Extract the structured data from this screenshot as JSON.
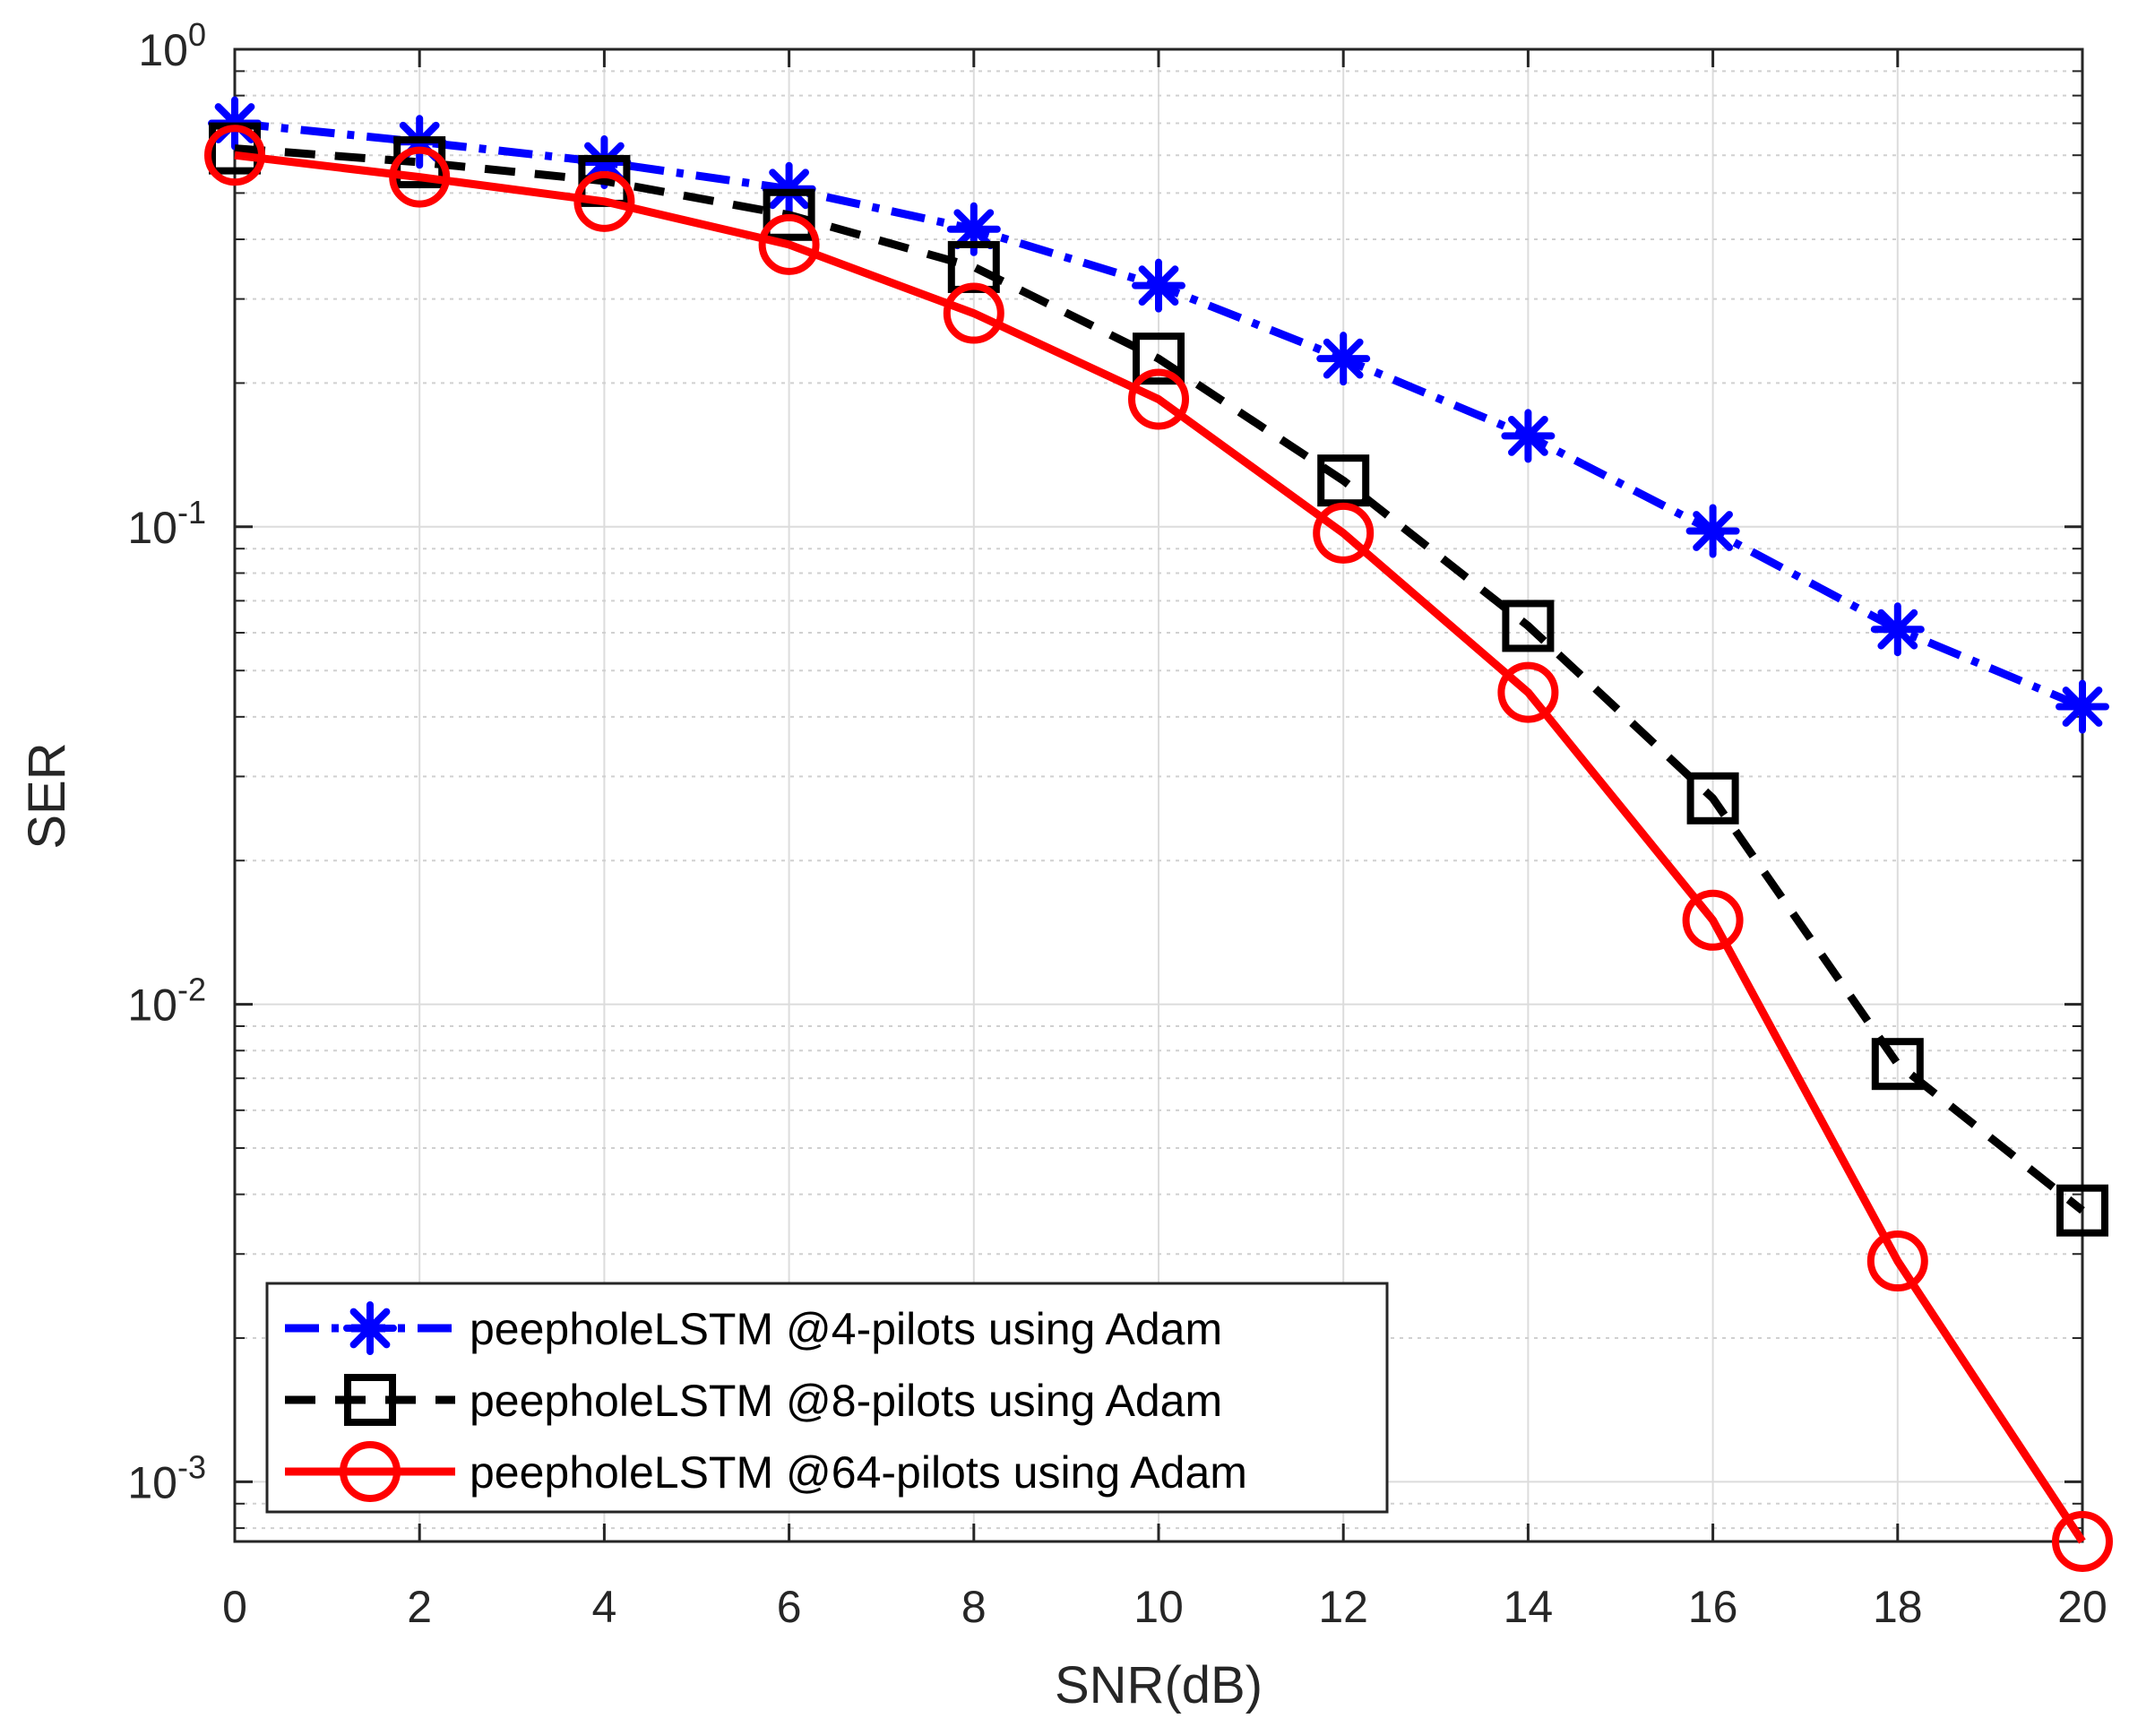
{
  "chart_data": {
    "type": "line",
    "xlabel": "SNR(dB)",
    "ylabel": "SER",
    "x": [
      0,
      2,
      4,
      6,
      8,
      10,
      12,
      14,
      16,
      18,
      20
    ],
    "xlim": [
      0,
      20
    ],
    "ylim": [
      0.00075,
      1
    ],
    "yscale": "log",
    "grid": "on (major and minor)",
    "legend_location": "bottom-left",
    "xticks": [
      "0",
      "2",
      "4",
      "6",
      "8",
      "10",
      "12",
      "14",
      "16",
      "18",
      "20"
    ],
    "yticks": [
      {
        "value": 1,
        "base": "10",
        "exp": "0"
      },
      {
        "value": 0.1,
        "base": "10",
        "exp": "-1"
      },
      {
        "value": 0.01,
        "base": "10",
        "exp": "-2"
      },
      {
        "value": 0.001,
        "base": "10",
        "exp": "-3"
      }
    ],
    "series": [
      {
        "name": "peepholeLSTM @4-pilots using Adam",
        "color": "#0000ff",
        "line_style": "dash-dot",
        "marker": "asterisk",
        "values": [
          0.7,
          0.64,
          0.58,
          0.51,
          0.42,
          0.32,
          0.225,
          0.155,
          0.098,
          0.061,
          0.042
        ]
      },
      {
        "name": "peepholeLSTM @8-pilots using Adam",
        "color": "#000000",
        "line_style": "dashed",
        "marker": "square",
        "values": [
          0.62,
          0.58,
          0.53,
          0.45,
          0.35,
          0.225,
          0.125,
          0.062,
          0.027,
          0.0075,
          0.0037
        ]
      },
      {
        "name": "peepholeLSTM @64-pilots using Adam",
        "color": "#ff0000",
        "line_style": "solid",
        "marker": "circle",
        "values": [
          0.6,
          0.54,
          0.48,
          0.39,
          0.28,
          0.185,
          0.097,
          0.045,
          0.015,
          0.0029,
          0.00075
        ]
      }
    ]
  }
}
